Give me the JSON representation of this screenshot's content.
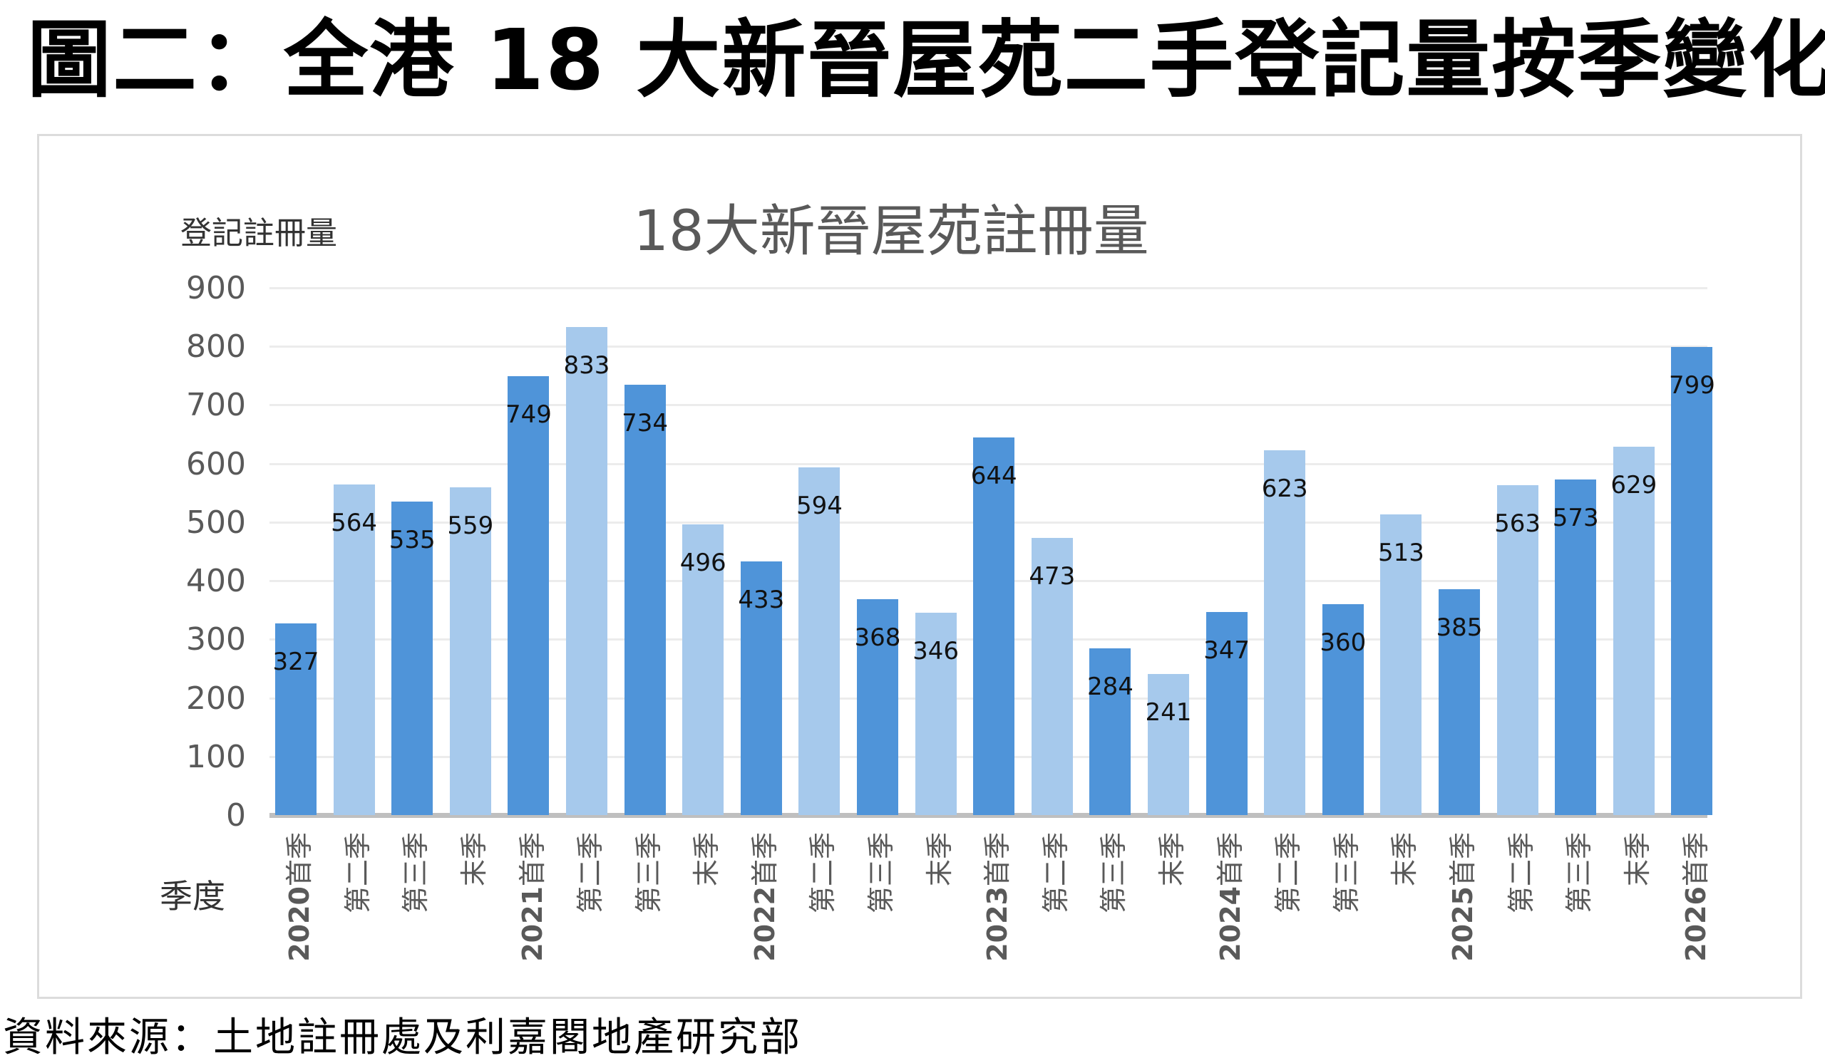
{
  "figure": {
    "title": "圖二：全港 18 大新晉屋苑二手登記量按季變化",
    "source": "資料來源：土地註冊處及利嘉閣地產研究部"
  },
  "colors": {
    "dark_bar": "#4f94d9",
    "light_bar": "#a6c9ec",
    "gridline": "#ececec",
    "axis": "#bfbfbf"
  },
  "chart_data": {
    "type": "bar",
    "title": "18大新晉屋苑註冊量",
    "ylabel": "登記註冊量",
    "xlabel": "季度",
    "ylim": [
      0,
      900
    ],
    "yticks": [
      0,
      100,
      200,
      300,
      400,
      500,
      600,
      700,
      800,
      900
    ],
    "grid": true,
    "legend": null,
    "categories": [
      "2020首季",
      "第二季",
      "第三季",
      "末季",
      "2021首季",
      "第二季",
      "第三季",
      "末季",
      "2022首季",
      "第二季",
      "第三季",
      "末季",
      "2023首季",
      "第二季",
      "第三季",
      "末季",
      "2024首季",
      "第二季",
      "第三季",
      "末季",
      "2025首季",
      "第二季",
      "第三季",
      "末季",
      "2026首季"
    ],
    "category_parts": [
      [
        "2020",
        "首季"
      ],
      [
        "",
        "第二季"
      ],
      [
        "",
        "第三季"
      ],
      [
        "",
        "末季"
      ],
      [
        "2021",
        "首季"
      ],
      [
        "",
        "第二季"
      ],
      [
        "",
        "第三季"
      ],
      [
        "",
        "末季"
      ],
      [
        "2022",
        "首季"
      ],
      [
        "",
        "第二季"
      ],
      [
        "",
        "第三季"
      ],
      [
        "",
        "末季"
      ],
      [
        "2023",
        "首季"
      ],
      [
        "",
        "第二季"
      ],
      [
        "",
        "第三季"
      ],
      [
        "",
        "末季"
      ],
      [
        "2024",
        "首季"
      ],
      [
        "",
        "第二季"
      ],
      [
        "",
        "第三季"
      ],
      [
        "",
        "末季"
      ],
      [
        "2025",
        "首季"
      ],
      [
        "",
        "第二季"
      ],
      [
        "",
        "第三季"
      ],
      [
        "",
        "末季"
      ],
      [
        "2026",
        "首季"
      ]
    ],
    "values": [
      327,
      564,
      535,
      559,
      749,
      833,
      734,
      496,
      433,
      594,
      368,
      346,
      644,
      473,
      284,
      241,
      347,
      623,
      360,
      513,
      385,
      563,
      573,
      629,
      799
    ],
    "bar_shades": [
      "dark",
      "light",
      "dark",
      "light",
      "dark",
      "light",
      "dark",
      "light",
      "dark",
      "light",
      "dark",
      "light",
      "dark",
      "light",
      "dark",
      "light",
      "dark",
      "light",
      "dark",
      "light",
      "dark",
      "light",
      "dark",
      "light",
      "dark"
    ]
  }
}
